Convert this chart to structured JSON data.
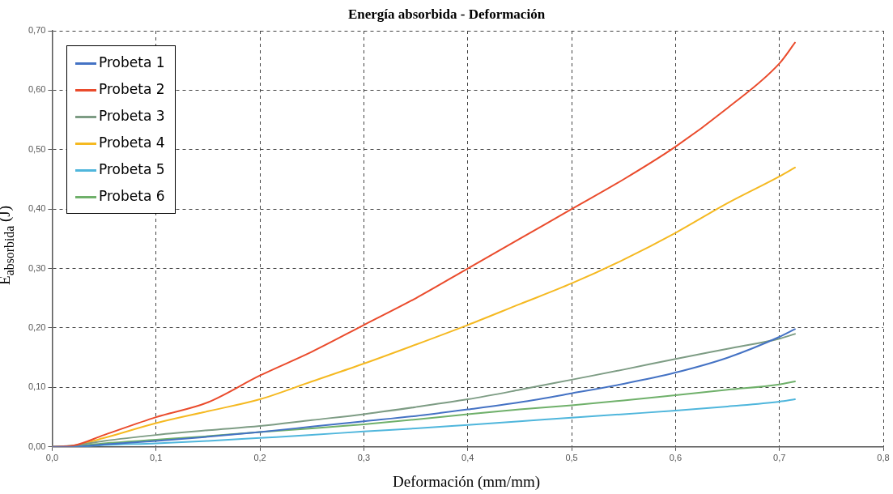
{
  "chart_data": {
    "type": "line",
    "title": "Energía absorbida - Deformación",
    "xlabel": "Deformación (mm/mm)",
    "ylabel": "E$_{absorbida}$ (J)",
    "x": [
      0,
      0.02,
      0.05,
      0.1,
      0.15,
      0.2,
      0.25,
      0.3,
      0.35,
      0.4,
      0.45,
      0.5,
      0.55,
      0.6,
      0.65,
      0.7,
      0.715
    ],
    "series": [
      {
        "name": "Probeta 1",
        "color": "#4472c4",
        "values": [
          0,
          0,
          0.004,
          0.01,
          0.017,
          0.025,
          0.034,
          0.043,
          0.052,
          0.063,
          0.075,
          0.09,
          0.106,
          0.125,
          0.15,
          0.185,
          0.198
        ]
      },
      {
        "name": "Probeta 2",
        "color": "#ea4b2c",
        "values": [
          0,
          0.002,
          0.02,
          0.05,
          0.075,
          0.12,
          0.16,
          0.205,
          0.25,
          0.3,
          0.35,
          0.4,
          0.45,
          0.505,
          0.57,
          0.645,
          0.68
        ]
      },
      {
        "name": "Probeta 3",
        "color": "#7d9c84",
        "values": [
          0,
          0.002,
          0.01,
          0.02,
          0.028,
          0.035,
          0.045,
          0.055,
          0.067,
          0.08,
          0.096,
          0.113,
          0.13,
          0.148,
          0.165,
          0.182,
          0.19
        ]
      },
      {
        "name": "Probeta 4",
        "color": "#f5b921",
        "values": [
          0,
          0.002,
          0.015,
          0.04,
          0.06,
          0.08,
          0.11,
          0.14,
          0.172,
          0.205,
          0.24,
          0.275,
          0.315,
          0.36,
          0.41,
          0.455,
          0.47
        ]
      },
      {
        "name": "Probeta 5",
        "color": "#4fb6dc",
        "values": [
          0,
          0,
          0.003,
          0.006,
          0.01,
          0.015,
          0.02,
          0.026,
          0.031,
          0.037,
          0.043,
          0.049,
          0.055,
          0.061,
          0.068,
          0.076,
          0.08
        ]
      },
      {
        "name": "Probeta 6",
        "color": "#6fb06a",
        "values": [
          0,
          0.001,
          0.006,
          0.012,
          0.018,
          0.025,
          0.031,
          0.038,
          0.046,
          0.055,
          0.063,
          0.07,
          0.078,
          0.087,
          0.096,
          0.105,
          0.11
        ]
      }
    ],
    "xlim": [
      0,
      0.8
    ],
    "ylim": [
      0,
      0.7
    ],
    "xticks": [
      {
        "value": 0,
        "label": "0,0"
      },
      {
        "value": 0.1,
        "label": "0,1"
      },
      {
        "value": 0.2,
        "label": "0,2"
      },
      {
        "value": 0.3,
        "label": "0,3"
      },
      {
        "value": 0.4,
        "label": "0,4"
      },
      {
        "value": 0.5,
        "label": "0,5"
      },
      {
        "value": 0.6,
        "label": "0,6"
      },
      {
        "value": 0.7,
        "label": "0,7"
      },
      {
        "value": 0.8,
        "label": "0,8"
      }
    ],
    "yticks": [
      {
        "value": 0,
        "label": "0,00"
      },
      {
        "value": 0.1,
        "label": "0,10"
      },
      {
        "value": 0.2,
        "label": "0,20"
      },
      {
        "value": 0.3,
        "label": "0,30"
      },
      {
        "value": 0.4,
        "label": "0,40"
      },
      {
        "value": 0.5,
        "label": "0,50"
      },
      {
        "value": 0.6,
        "label": "0,60"
      },
      {
        "value": 0.7,
        "label": "0,70"
      }
    ],
    "grid": true,
    "legend": "top left",
    "marker": "none",
    "line_style": "solid"
  }
}
